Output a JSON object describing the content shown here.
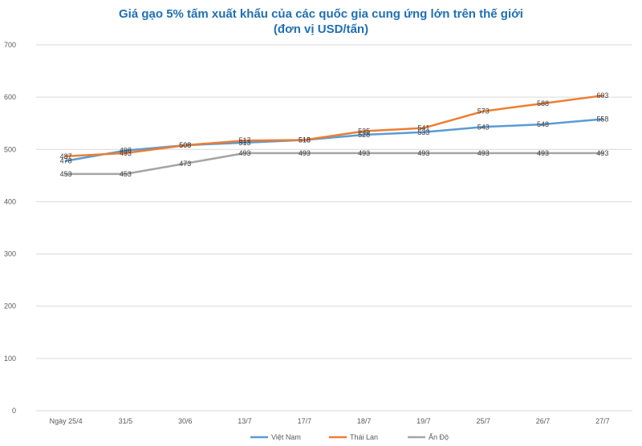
{
  "chart_data": {
    "type": "line",
    "title": "Giá gạo 5% tấm xuất khẩu của các quốc gia cung ứng lớn trên thế giới",
    "subtitle": "(đơn vị USD/tấn)",
    "categories": [
      "Ngày 25/4",
      "31/5",
      "30/6",
      "13/7",
      "17/7",
      "18/7",
      "19/7",
      "25/7",
      "26/7",
      "27/7"
    ],
    "ylim": [
      0,
      700
    ],
    "yticks": [
      0,
      100,
      200,
      300,
      400,
      500,
      600,
      700
    ],
    "grid": true,
    "legend_position": "bottom",
    "series": [
      {
        "name": "Việt Nam",
        "color": "#5b9bd5",
        "values": [
          478,
          498,
          508,
          513,
          518,
          528,
          533,
          543,
          548,
          558
        ]
      },
      {
        "name": "Thái Lan",
        "color": "#ed7d31",
        "values": [
          487,
          493,
          508,
          517,
          518,
          535,
          541,
          573,
          588,
          603
        ]
      },
      {
        "name": "Ấn Độ",
        "color": "#a5a5a5",
        "values": [
          453,
          453,
          473,
          493,
          493,
          493,
          493,
          493,
          493,
          493
        ]
      }
    ]
  }
}
